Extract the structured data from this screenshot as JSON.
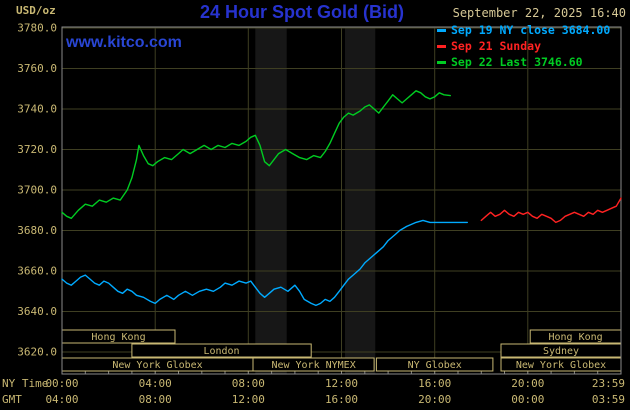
{
  "header": {
    "unit_label": "USD/oz",
    "title": "24 Hour Spot Gold (Bid)",
    "datetime": "September 22, 2025 16:40",
    "watermark": "www.kitco.com"
  },
  "legend": [
    {
      "label": "Sep 19 NY close 3684.00",
      "color": "#00aaff"
    },
    {
      "label": "Sep 21 Sunday",
      "color": "#ff2222"
    },
    {
      "label": "Sep 22 Last 3746.60",
      "color": "#00cc22"
    }
  ],
  "axes": {
    "ny_label": "NY Time",
    "gmt_label": "GMT",
    "ny_ticks": [
      "00:00",
      "04:00",
      "08:00",
      "12:00",
      "16:00",
      "20:00",
      "23:59"
    ],
    "gmt_ticks": [
      "04:00",
      "08:00",
      "12:00",
      "16:00",
      "20:00",
      "00:00",
      "03:59"
    ],
    "y_ticks": [
      "3780.0",
      "3760.0",
      "3740.0",
      "3720.0",
      "3700.0",
      "3680.0",
      "3660.0",
      "3640.0",
      "3620.0"
    ]
  },
  "sessions": {
    "items": [
      {
        "row": 0,
        "start_h": 0,
        "end_h": 4.85,
        "label": "Hong Kong"
      },
      {
        "row": 0,
        "start_h": 20.1,
        "end_h": 24,
        "label": "Hong Kong"
      },
      {
        "row": 1,
        "start_h": 3.0,
        "end_h": 10.7,
        "label": "London"
      },
      {
        "row": 1,
        "start_h": 18.85,
        "end_h": 24,
        "label": "Sydney"
      },
      {
        "row": 2,
        "start_h": 0,
        "end_h": 8.2,
        "label": "New York Globex"
      },
      {
        "row": 2,
        "start_h": 8.2,
        "end_h": 13.4,
        "label": "New York NYMEX"
      },
      {
        "row": 2,
        "start_h": 13.5,
        "end_h": 18.5,
        "label": "NY Globex"
      },
      {
        "row": 2,
        "start_h": 18.85,
        "end_h": 24,
        "label": "New York Globex"
      }
    ]
  },
  "colors": {
    "background": "#000000",
    "grid": "#3f3f22",
    "frame": "#8a8a8a",
    "axis_text": "#c9b873",
    "title_blue": "#2733cf",
    "link_blue": "#2946d4",
    "date_text": "#d6c896",
    "band": "#171717",
    "session_box": "#c9b873"
  },
  "chart_data": {
    "type": "line",
    "title": "24 Hour Spot Gold (Bid)",
    "xlabel": "NY Time",
    "ylabel": "USD/oz",
    "xlim_hours": [
      0,
      24
    ],
    "ylim": [
      3620,
      3780
    ],
    "y_tick_step": 20,
    "x_gridlines_hours": [
      4,
      8,
      12,
      16,
      20
    ],
    "shaded_bands_hours": [
      [
        8.3,
        9.65
      ],
      [
        12.15,
        13.45
      ]
    ],
    "legend_position": "top-right",
    "grid": true,
    "series": [
      {
        "id": "sep19",
        "name": "Sep 19 NY close",
        "color": "#00aaff",
        "close": 3684.0,
        "points": [
          [
            0,
            3656
          ],
          [
            0.2,
            3654
          ],
          [
            0.4,
            3653
          ],
          [
            0.6,
            3655
          ],
          [
            0.8,
            3657
          ],
          [
            1,
            3658
          ],
          [
            1.2,
            3656
          ],
          [
            1.4,
            3654
          ],
          [
            1.6,
            3653
          ],
          [
            1.8,
            3655
          ],
          [
            2,
            3654
          ],
          [
            2.2,
            3652
          ],
          [
            2.4,
            3650
          ],
          [
            2.6,
            3649
          ],
          [
            2.8,
            3651
          ],
          [
            3,
            3650
          ],
          [
            3.2,
            3648
          ],
          [
            3.5,
            3647
          ],
          [
            3.8,
            3645
          ],
          [
            4,
            3644
          ],
          [
            4.2,
            3646
          ],
          [
            4.5,
            3648
          ],
          [
            4.8,
            3646
          ],
          [
            5,
            3648
          ],
          [
            5.3,
            3650
          ],
          [
            5.6,
            3648
          ],
          [
            5.9,
            3650
          ],
          [
            6.2,
            3651
          ],
          [
            6.5,
            3650
          ],
          [
            6.8,
            3652
          ],
          [
            7,
            3654
          ],
          [
            7.3,
            3653
          ],
          [
            7.6,
            3655
          ],
          [
            7.9,
            3654
          ],
          [
            8.1,
            3655
          ],
          [
            8.3,
            3652
          ],
          [
            8.5,
            3649
          ],
          [
            8.7,
            3647
          ],
          [
            8.9,
            3649
          ],
          [
            9.1,
            3651
          ],
          [
            9.4,
            3652
          ],
          [
            9.7,
            3650
          ],
          [
            10,
            3653
          ],
          [
            10.2,
            3650
          ],
          [
            10.4,
            3646
          ],
          [
            10.7,
            3644
          ],
          [
            10.9,
            3643
          ],
          [
            11.1,
            3644
          ],
          [
            11.3,
            3646
          ],
          [
            11.5,
            3645
          ],
          [
            11.7,
            3647
          ],
          [
            11.9,
            3650
          ],
          [
            12.1,
            3653
          ],
          [
            12.3,
            3656
          ],
          [
            12.5,
            3658
          ],
          [
            12.8,
            3661
          ],
          [
            13,
            3664
          ],
          [
            13.2,
            3666
          ],
          [
            13.5,
            3669
          ],
          [
            13.8,
            3672
          ],
          [
            14,
            3675
          ],
          [
            14.3,
            3678
          ],
          [
            14.5,
            3680
          ],
          [
            14.8,
            3682
          ],
          [
            15,
            3683
          ],
          [
            15.2,
            3684
          ],
          [
            15.5,
            3685
          ],
          [
            15.8,
            3684
          ],
          [
            16,
            3684
          ],
          [
            16.5,
            3684
          ],
          [
            17,
            3684
          ],
          [
            17.4,
            3684
          ]
        ]
      },
      {
        "id": "sep21",
        "name": "Sep 21 Sunday",
        "color": "#ff2222",
        "points": [
          [
            18,
            3685
          ],
          [
            18.2,
            3687
          ],
          [
            18.4,
            3689
          ],
          [
            18.6,
            3687
          ],
          [
            18.8,
            3688
          ],
          [
            19,
            3690
          ],
          [
            19.2,
            3688
          ],
          [
            19.4,
            3687
          ],
          [
            19.6,
            3689
          ],
          [
            19.8,
            3688
          ],
          [
            20,
            3689
          ],
          [
            20.2,
            3687
          ],
          [
            20.4,
            3686
          ],
          [
            20.6,
            3688
          ],
          [
            20.8,
            3687
          ],
          [
            21,
            3686
          ],
          [
            21.2,
            3684
          ],
          [
            21.4,
            3685
          ],
          [
            21.6,
            3687
          ],
          [
            21.8,
            3688
          ],
          [
            22,
            3689
          ],
          [
            22.2,
            3688
          ],
          [
            22.4,
            3687
          ],
          [
            22.6,
            3689
          ],
          [
            22.8,
            3688
          ],
          [
            23,
            3690
          ],
          [
            23.2,
            3689
          ],
          [
            23.4,
            3690
          ],
          [
            23.6,
            3691
          ],
          [
            23.8,
            3692
          ],
          [
            24,
            3696
          ]
        ]
      },
      {
        "id": "sep22",
        "name": "Sep 22 Last",
        "color": "#00cc22",
        "last": 3746.6,
        "points": [
          [
            0,
            3689
          ],
          [
            0.2,
            3687
          ],
          [
            0.4,
            3686
          ],
          [
            0.7,
            3690
          ],
          [
            1,
            3693
          ],
          [
            1.3,
            3692
          ],
          [
            1.6,
            3695
          ],
          [
            1.9,
            3694
          ],
          [
            2.2,
            3696
          ],
          [
            2.5,
            3695
          ],
          [
            2.8,
            3700
          ],
          [
            3,
            3706
          ],
          [
            3.2,
            3715
          ],
          [
            3.3,
            3722
          ],
          [
            3.5,
            3717
          ],
          [
            3.7,
            3713
          ],
          [
            3.9,
            3712
          ],
          [
            4.1,
            3714
          ],
          [
            4.4,
            3716
          ],
          [
            4.7,
            3715
          ],
          [
            5,
            3718
          ],
          [
            5.2,
            3720
          ],
          [
            5.5,
            3718
          ],
          [
            5.8,
            3720
          ],
          [
            6.1,
            3722
          ],
          [
            6.4,
            3720
          ],
          [
            6.7,
            3722
          ],
          [
            7,
            3721
          ],
          [
            7.3,
            3723
          ],
          [
            7.6,
            3722
          ],
          [
            7.9,
            3724
          ],
          [
            8.1,
            3726
          ],
          [
            8.3,
            3727
          ],
          [
            8.5,
            3722
          ],
          [
            8.7,
            3714
          ],
          [
            8.9,
            3712
          ],
          [
            9.1,
            3715
          ],
          [
            9.3,
            3718
          ],
          [
            9.6,
            3720
          ],
          [
            9.9,
            3718
          ],
          [
            10.2,
            3716
          ],
          [
            10.5,
            3715
          ],
          [
            10.8,
            3717
          ],
          [
            11.1,
            3716
          ],
          [
            11.3,
            3719
          ],
          [
            11.5,
            3723
          ],
          [
            11.7,
            3728
          ],
          [
            11.9,
            3733
          ],
          [
            12.1,
            3736
          ],
          [
            12.3,
            3738
          ],
          [
            12.5,
            3737
          ],
          [
            12.8,
            3739
          ],
          [
            13,
            3741
          ],
          [
            13.2,
            3742
          ],
          [
            13.4,
            3740
          ],
          [
            13.6,
            3738
          ],
          [
            13.8,
            3741
          ],
          [
            14,
            3744
          ],
          [
            14.2,
            3747
          ],
          [
            14.4,
            3745
          ],
          [
            14.6,
            3743
          ],
          [
            14.8,
            3745
          ],
          [
            15,
            3747
          ],
          [
            15.2,
            3749
          ],
          [
            15.4,
            3748
          ],
          [
            15.6,
            3746
          ],
          [
            15.8,
            3745
          ],
          [
            16,
            3746
          ],
          [
            16.2,
            3748
          ],
          [
            16.4,
            3747
          ],
          [
            16.67,
            3746.6
          ]
        ]
      }
    ]
  }
}
